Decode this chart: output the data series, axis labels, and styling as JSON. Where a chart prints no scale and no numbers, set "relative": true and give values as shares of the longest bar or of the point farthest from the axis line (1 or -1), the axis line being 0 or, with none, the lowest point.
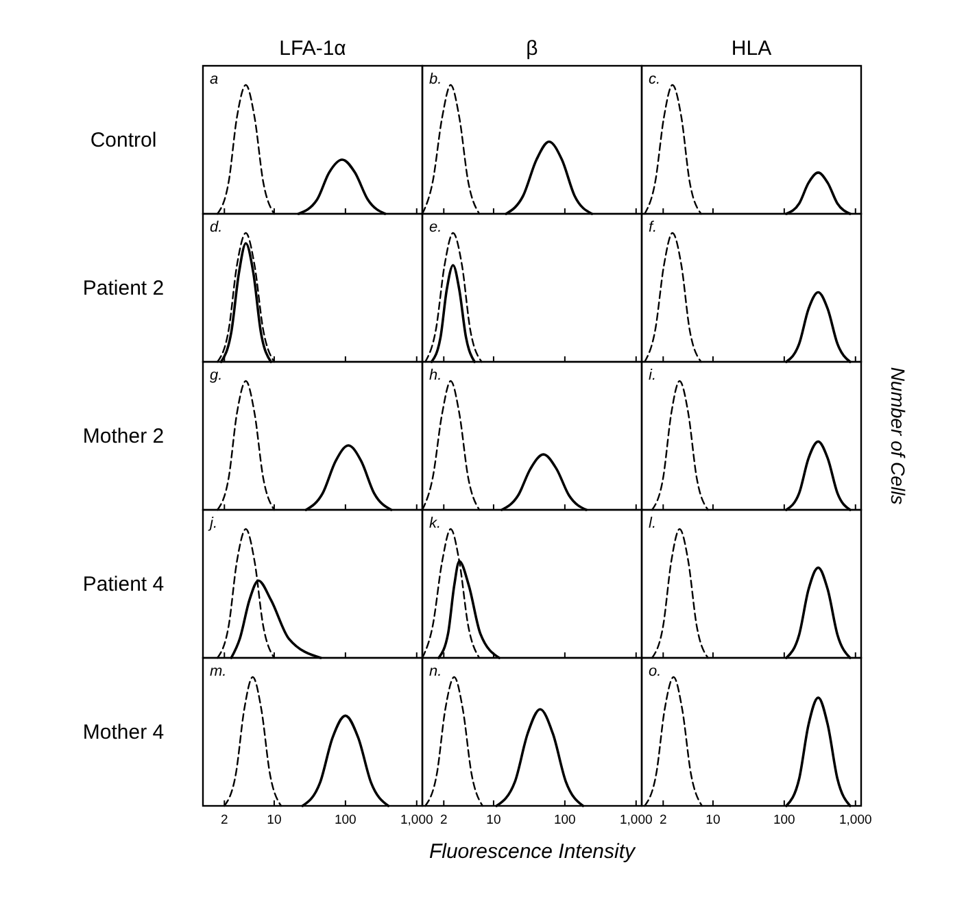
{
  "chart_data": [
    {
      "type": "line",
      "title": "LFA-1α",
      "ylabel": "Control",
      "annotations": [
        "a"
      ],
      "relative": true,
      "xlim": [
        1,
        1200
      ],
      "log": "x",
      "xticks": [
        {
          "value": 2,
          "label": null
        },
        {
          "value": 10,
          "label": null
        },
        {
          "value": 100,
          "label": null
        },
        {
          "value": 1000,
          "label": null
        }
      ],
      "tick_labels": false,
      "series": [
        {
          "color": "#000000",
          "line_style": "dashed",
          "x": [
            1.6,
            2.3,
            3,
            4,
            5.3,
            7,
            10
          ],
          "values": [
            0,
            0.25,
            0.75,
            1,
            0.75,
            0.25,
            0
          ]
        },
        {
          "color": "#000000",
          "line_style": "solid",
          "x": [
            22,
            40,
            59,
            90,
            136,
            206,
            360
          ],
          "values": [
            0,
            0.11,
            0.32,
            0.42,
            0.32,
            0.11,
            0
          ]
        }
      ]
    },
    {
      "type": "line",
      "title": "β",
      "annotations": [
        "b."
      ],
      "relative": true,
      "xlim": [
        1,
        1200
      ],
      "log": "x",
      "xticks": [
        {
          "value": 2,
          "label": null
        },
        {
          "value": 10,
          "label": null
        },
        {
          "value": 100,
          "label": null
        },
        {
          "value": 1000,
          "label": null
        }
      ],
      "tick_labels": false,
      "series": [
        {
          "color": "#000000",
          "line_style": "dashed",
          "x": [
            1,
            1.4,
            1.9,
            2.5,
            3.3,
            4.4,
            6.3
          ],
          "values": [
            0,
            0.25,
            0.75,
            1,
            0.75,
            0.25,
            0
          ]
        },
        {
          "color": "#000000",
          "line_style": "solid",
          "x": [
            15,
            26,
            40,
            60,
            91,
            137,
            240
          ],
          "values": [
            0,
            0.14,
            0.42,
            0.56,
            0.42,
            0.14,
            0
          ]
        }
      ]
    },
    {
      "type": "line",
      "title": "HLA",
      "annotations": [
        "c."
      ],
      "relative": true,
      "xlim": [
        1,
        1200
      ],
      "log": "x",
      "xticks": [
        {
          "value": 2,
          "label": null
        },
        {
          "value": 10,
          "label": null
        },
        {
          "value": 100,
          "label": null
        },
        {
          "value": 1000,
          "label": null
        }
      ],
      "tick_labels": false,
      "series": [
        {
          "color": "#000000",
          "line_style": "dashed",
          "x": [
            1.1,
            1.55,
            2.05,
            2.7,
            3.6,
            4.7,
            6.8
          ],
          "values": [
            0,
            0.25,
            0.75,
            1,
            0.75,
            0.25,
            0
          ]
        },
        {
          "color": "#000000",
          "line_style": "solid",
          "x": [
            107,
            162,
            219,
            300,
            408,
            558,
            840
          ],
          "values": [
            0,
            0.08,
            0.24,
            0.32,
            0.24,
            0.08,
            0
          ]
        }
      ]
    },
    {
      "type": "line",
      "ylabel": "Patient 2",
      "annotations": [
        "d."
      ],
      "relative": true,
      "xlim": [
        1,
        1200
      ],
      "log": "x",
      "xticks": [
        {
          "value": 2,
          "label": null
        },
        {
          "value": 10,
          "label": null
        },
        {
          "value": 100,
          "label": null
        },
        {
          "value": 1000,
          "label": null
        }
      ],
      "tick_labels": false,
      "series": [
        {
          "color": "#000000",
          "line_style": "dashed",
          "x": [
            1.6,
            2.3,
            3,
            4,
            5.3,
            7,
            10
          ],
          "values": [
            0,
            0.25,
            0.75,
            1,
            0.75,
            0.25,
            0
          ]
        },
        {
          "color": "#000000",
          "line_style": "solid",
          "x": [
            1.8,
            2.5,
            3.2,
            4,
            5.1,
            6.5,
            9
          ],
          "values": [
            0,
            0.23,
            0.69,
            0.92,
            0.69,
            0.23,
            0
          ]
        }
      ]
    },
    {
      "type": "line",
      "annotations": [
        "e."
      ],
      "relative": true,
      "xlim": [
        1,
        1200
      ],
      "log": "x",
      "xticks": [
        {
          "value": 2,
          "label": null
        },
        {
          "value": 10,
          "label": null
        },
        {
          "value": 100,
          "label": null
        },
        {
          "value": 1000,
          "label": null
        }
      ],
      "tick_labels": false,
      "series": [
        {
          "color": "#000000",
          "line_style": "dashed",
          "x": [
            1.1,
            1.55,
            2.05,
            2.7,
            3.6,
            4.7,
            6.8
          ],
          "values": [
            0,
            0.25,
            0.75,
            1,
            0.75,
            0.25,
            0
          ]
        },
        {
          "color": "#000000",
          "line_style": "solid",
          "x": [
            1.35,
            1.8,
            2.2,
            2.7,
            3.3,
            4.1,
            5.4
          ],
          "values": [
            0,
            0.19,
            0.56,
            0.75,
            0.56,
            0.19,
            0
          ]
        }
      ]
    },
    {
      "type": "line",
      "annotations": [
        "f."
      ],
      "relative": true,
      "xlim": [
        1,
        1200
      ],
      "log": "x",
      "xticks": [
        {
          "value": 2,
          "label": null
        },
        {
          "value": 10,
          "label": null
        },
        {
          "value": 100,
          "label": null
        },
        {
          "value": 1000,
          "label": null
        }
      ],
      "tick_labels": false,
      "series": [
        {
          "color": "#000000",
          "line_style": "dashed",
          "x": [
            1.1,
            1.55,
            2.05,
            2.7,
            3.6,
            4.7,
            6.8
          ],
          "values": [
            0,
            0.25,
            0.75,
            1,
            0.75,
            0.25,
            0
          ]
        },
        {
          "color": "#000000",
          "line_style": "solid",
          "x": [
            107,
            162,
            219,
            300,
            408,
            558,
            840
          ],
          "values": [
            0,
            0.14,
            0.41,
            0.54,
            0.41,
            0.14,
            0
          ]
        }
      ]
    },
    {
      "type": "line",
      "ylabel": "Mother 2",
      "annotations": [
        "g."
      ],
      "relative": true,
      "xlim": [
        1,
        1200
      ],
      "log": "x",
      "xticks": [
        {
          "value": 2,
          "label": null
        },
        {
          "value": 10,
          "label": null
        },
        {
          "value": 100,
          "label": null
        },
        {
          "value": 1000,
          "label": null
        }
      ],
      "tick_labels": false,
      "series": [
        {
          "color": "#000000",
          "line_style": "dashed",
          "x": [
            1.6,
            2.3,
            3,
            4,
            5.3,
            7,
            10
          ],
          "values": [
            0,
            0.25,
            0.75,
            1,
            0.75,
            0.25,
            0
          ]
        },
        {
          "color": "#000000",
          "line_style": "solid",
          "x": [
            28,
            48,
            73,
            110,
            166,
            252,
            440
          ],
          "values": [
            0,
            0.13,
            0.38,
            0.5,
            0.38,
            0.13,
            0
          ]
        }
      ]
    },
    {
      "type": "line",
      "annotations": [
        "h."
      ],
      "relative": true,
      "xlim": [
        1,
        1200
      ],
      "log": "x",
      "xticks": [
        {
          "value": 2,
          "label": null
        },
        {
          "value": 10,
          "label": null
        },
        {
          "value": 100,
          "label": null
        },
        {
          "value": 1000,
          "label": null
        }
      ],
      "tick_labels": false,
      "series": [
        {
          "color": "#000000",
          "line_style": "dashed",
          "x": [
            1,
            1.4,
            1.9,
            2.5,
            3.3,
            4.4,
            6.3
          ],
          "values": [
            0,
            0.25,
            0.75,
            1,
            0.75,
            0.25,
            0
          ]
        },
        {
          "color": "#000000",
          "line_style": "solid",
          "x": [
            13,
            22,
            33,
            50,
            76,
            115,
            200
          ],
          "values": [
            0,
            0.11,
            0.32,
            0.43,
            0.32,
            0.11,
            0
          ]
        }
      ]
    },
    {
      "type": "line",
      "annotations": [
        "i.",
        "Number of Cells"
      ],
      "relative": true,
      "xlim": [
        1,
        1200
      ],
      "log": "x",
      "xticks": [
        {
          "value": 2,
          "label": null
        },
        {
          "value": 10,
          "label": null
        },
        {
          "value": 100,
          "label": null
        },
        {
          "value": 1000,
          "label": null
        }
      ],
      "tick_labels": false,
      "series": [
        {
          "color": "#000000",
          "line_style": "dashed",
          "x": [
            1.4,
            2,
            2.6,
            3.4,
            4.5,
            5.9,
            8.5
          ],
          "values": [
            0,
            0.25,
            0.75,
            1,
            0.75,
            0.25,
            0
          ]
        },
        {
          "color": "#000000",
          "line_style": "solid",
          "x": [
            107,
            162,
            219,
            300,
            408,
            558,
            840
          ],
          "values": [
            0,
            0.13,
            0.4,
            0.53,
            0.4,
            0.13,
            0
          ]
        }
      ]
    },
    {
      "type": "line",
      "ylabel": "Patient 4",
      "annotations": [
        "j."
      ],
      "relative": true,
      "xlim": [
        1,
        1200
      ],
      "log": "x",
      "xticks": [
        {
          "value": 2,
          "label": null
        },
        {
          "value": 10,
          "label": null
        },
        {
          "value": 100,
          "label": null
        },
        {
          "value": 1000,
          "label": null
        }
      ],
      "tick_labels": false,
      "series": [
        {
          "color": "#000000",
          "line_style": "dashed",
          "x": [
            1.6,
            2.3,
            3,
            4,
            5.3,
            7,
            10
          ],
          "values": [
            0,
            0.25,
            0.75,
            1,
            0.75,
            0.25,
            0
          ]
        },
        {
          "color": "#000000",
          "line_style": "solid",
          "x": [
            2.5,
            3.3,
            4.5,
            6,
            9,
            16,
            45
          ],
          "values": [
            0,
            0.15,
            0.45,
            0.6,
            0.45,
            0.15,
            0
          ]
        }
      ]
    },
    {
      "type": "line",
      "annotations": [
        "k."
      ],
      "relative": true,
      "xlim": [
        1,
        1200
      ],
      "log": "x",
      "xticks": [
        {
          "value": 2,
          "label": null
        },
        {
          "value": 10,
          "label": null
        },
        {
          "value": 100,
          "label": null
        },
        {
          "value": 1000,
          "label": null
        }
      ],
      "tick_labels": false,
      "series": [
        {
          "color": "#000000",
          "line_style": "dashed",
          "x": [
            1,
            1.4,
            1.9,
            2.5,
            3.3,
            4.4,
            6.3
          ],
          "values": [
            0,
            0.25,
            0.75,
            1,
            0.75,
            0.25,
            0
          ]
        },
        {
          "color": "#000000",
          "line_style": "solid",
          "x": [
            1.7,
            2.3,
            2.8,
            3.3,
            4.5,
            6.5,
            12
          ],
          "values": [
            0,
            0.19,
            0.56,
            0.75,
            0.56,
            0.19,
            0
          ]
        }
      ]
    },
    {
      "type": "line",
      "annotations": [
        "l."
      ],
      "relative": true,
      "xlim": [
        1,
        1200
      ],
      "log": "x",
      "xticks": [
        {
          "value": 2,
          "label": null
        },
        {
          "value": 10,
          "label": null
        },
        {
          "value": 100,
          "label": null
        },
        {
          "value": 1000,
          "label": null
        }
      ],
      "tick_labels": false,
      "series": [
        {
          "color": "#000000",
          "line_style": "dashed",
          "x": [
            1.4,
            2,
            2.6,
            3.4,
            4.5,
            5.9,
            8.5
          ],
          "values": [
            0,
            0.25,
            0.75,
            1,
            0.75,
            0.25,
            0
          ]
        },
        {
          "color": "#000000",
          "line_style": "solid",
          "x": [
            107,
            162,
            219,
            300,
            408,
            558,
            840
          ],
          "values": [
            0,
            0.18,
            0.53,
            0.7,
            0.53,
            0.18,
            0
          ]
        }
      ]
    },
    {
      "type": "line",
      "ylabel": "Mother 4",
      "annotations": [
        "m."
      ],
      "relative": true,
      "xlim": [
        1,
        1200
      ],
      "log": "x",
      "xticks": [
        2,
        10,
        100,
        {
          "value": 1000,
          "label": "1,000"
        }
      ],
      "tick_labels": "x",
      "series": [
        {
          "color": "#000000",
          "line_style": "dashed",
          "x": [
            2,
            2.9,
            3.8,
            5,
            6.6,
            8.7,
            12.5
          ],
          "values": [
            0,
            0.25,
            0.75,
            1,
            0.75,
            0.25,
            0
          ]
        },
        {
          "color": "#000000",
          "line_style": "solid",
          "x": [
            25,
            44,
            66,
            100,
            151,
            229,
            400
          ],
          "values": [
            0,
            0.18,
            0.53,
            0.7,
            0.53,
            0.18,
            0
          ]
        }
      ]
    },
    {
      "type": "line",
      "xlabel": "Fluorescence Intensity",
      "annotations": [
        "n."
      ],
      "relative": true,
      "xlim": [
        1,
        1200
      ],
      "log": "x",
      "xticks": [
        2,
        10,
        100,
        {
          "value": 1000,
          "label": "1,000"
        }
      ],
      "tick_labels": "x",
      "series": [
        {
          "color": "#000000",
          "line_style": "dashed",
          "x": [
            1.1,
            1.6,
            2.1,
            2.8,
            3.7,
            4.9,
            7
          ],
          "values": [
            0,
            0.25,
            0.75,
            1,
            0.75,
            0.25,
            0
          ]
        },
        {
          "color": "#000000",
          "line_style": "solid",
          "x": [
            11,
            20,
            30,
            45,
            68,
            103,
            180
          ],
          "values": [
            0,
            0.19,
            0.56,
            0.75,
            0.56,
            0.19,
            0
          ]
        }
      ]
    },
    {
      "type": "line",
      "annotations": [
        "o."
      ],
      "relative": true,
      "xlim": [
        1,
        1200
      ],
      "log": "x",
      "xticks": [
        2,
        10,
        100,
        {
          "value": 1000,
          "label": "1,000"
        }
      ],
      "tick_labels": "x",
      "series": [
        {
          "color": "#000000",
          "line_style": "dashed",
          "x": [
            1.1,
            1.6,
            2.1,
            2.8,
            3.7,
            4.9,
            7
          ],
          "values": [
            0,
            0.25,
            0.75,
            1,
            0.75,
            0.25,
            0
          ]
        },
        {
          "color": "#000000",
          "line_style": "solid",
          "x": [
            107,
            162,
            219,
            300,
            408,
            558,
            840
          ],
          "values": [
            0,
            0.21,
            0.63,
            0.84,
            0.63,
            0.21,
            0
          ]
        }
      ]
    }
  ]
}
